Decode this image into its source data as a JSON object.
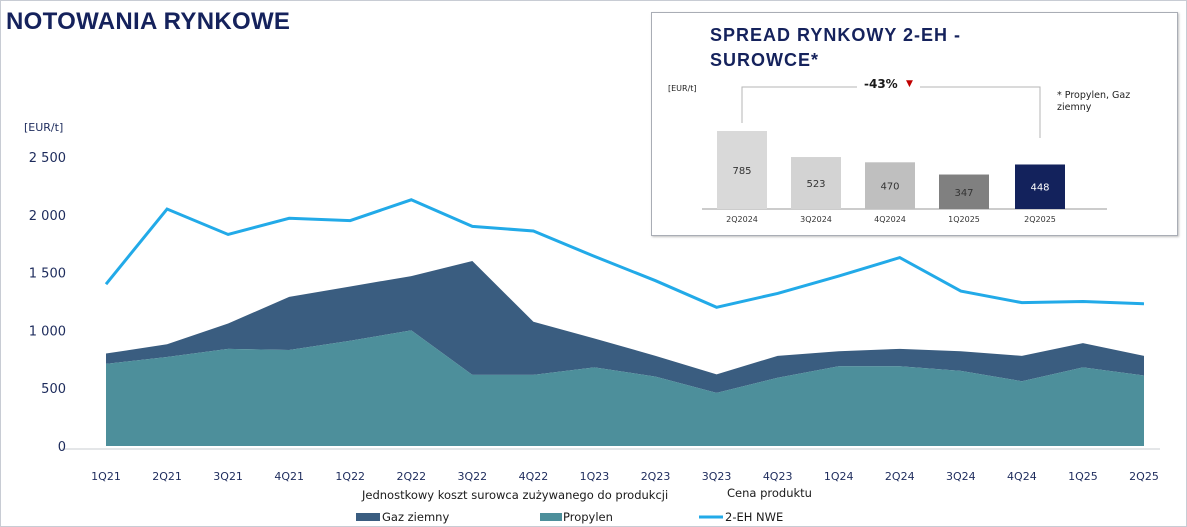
{
  "title": "NOTOWANIA RYNKOWE",
  "main_chart": {
    "unit_label": "[EUR/t]",
    "y_ticks": [
      "2 500",
      "2 000",
      "1 500",
      "1 000",
      "500",
      "0"
    ],
    "category_group_labels": [
      "Jednostkowy koszt surowca zużywanego do produkcji",
      "Cena produktu"
    ],
    "legend": [
      "Gaz ziemny",
      "Propylen",
      "2-EH NWE"
    ]
  },
  "inset": {
    "title": "SPREAD RYNKOWY 2-EH - SUROWCE*",
    "unit_label": "[EUR/t]",
    "change_label": "-43%",
    "change_arrow": "▼",
    "footnote": "* Propylen, Gaz ziemny"
  },
  "colors": {
    "gaz": "#3a5d80",
    "propylen": "#4d8f9b",
    "eh": "#22aae8",
    "spread_bars": [
      "#d9d9d9",
      "#d3d3d3",
      "#bfbfbf",
      "#808080",
      "#13225c"
    ]
  },
  "chart_data": [
    {
      "type": "area",
      "ylabel": "[EUR/t]",
      "ylim": [
        0,
        2500
      ],
      "categories": [
        "1Q21",
        "2Q21",
        "3Q21",
        "4Q21",
        "1Q22",
        "2Q22",
        "3Q22",
        "4Q22",
        "1Q23",
        "2Q23",
        "3Q23",
        "4Q23",
        "1Q24",
        "2Q24",
        "3Q24",
        "4Q24",
        "1Q25",
        "2Q25"
      ],
      "series": [
        {
          "name": "Propylen",
          "type": "area",
          "values": [
            710,
            770,
            840,
            830,
            910,
            1000,
            615,
            615,
            680,
            600,
            460,
            590,
            690,
            690,
            650,
            560,
            680,
            610
          ]
        },
        {
          "name": "Gaz ziemny",
          "type": "area",
          "stacked_on": "Propylen",
          "values": [
            90,
            110,
            220,
            460,
            470,
            470,
            985,
            460,
            250,
            180,
            160,
            190,
            130,
            150,
            170,
            220,
            210,
            170
          ]
        },
        {
          "name": "2-EH NWE",
          "type": "line",
          "values": [
            1400,
            2050,
            1830,
            1970,
            1950,
            2130,
            1900,
            1860,
            1640,
            1430,
            1200,
            1320,
            1470,
            1630,
            1340,
            1240,
            1250,
            1230
          ]
        }
      ],
      "legend_position": "bottom",
      "grid": false
    },
    {
      "type": "bar",
      "title": "SPREAD RYNKOWY 2-EH - SUROWCE*",
      "ylabel": "[EUR/t]",
      "categories": [
        "2Q2024",
        "3Q2024",
        "4Q2024",
        "1Q2025",
        "2Q2025"
      ],
      "values": [
        785,
        523,
        470,
        347,
        448
      ]
    }
  ]
}
